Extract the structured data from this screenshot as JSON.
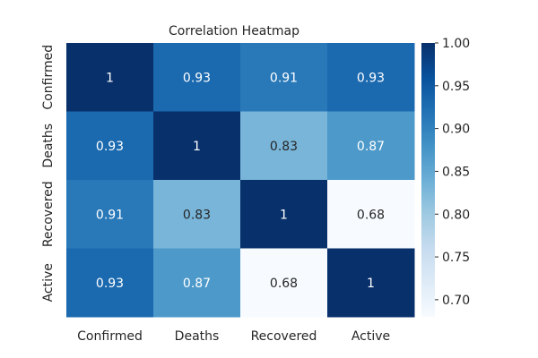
{
  "chart_data": {
    "type": "heatmap",
    "title": "Correlation Heatmap",
    "x_categories": [
      "Confirmed",
      "Deaths",
      "Recovered",
      "Active"
    ],
    "y_categories": [
      "Confirmed",
      "Deaths",
      "Recovered",
      "Active"
    ],
    "values": [
      [
        1,
        0.93,
        0.91,
        0.93
      ],
      [
        0.93,
        1,
        0.83,
        0.87
      ],
      [
        0.91,
        0.83,
        1,
        0.68
      ],
      [
        0.93,
        0.87,
        0.68,
        1
      ]
    ],
    "value_labels": [
      [
        "1",
        "0.93",
        "0.91",
        "0.93"
      ],
      [
        "0.93",
        "1",
        "0.83",
        "0.87"
      ],
      [
        "0.91",
        "0.83",
        "1",
        "0.68"
      ],
      [
        "0.93",
        "0.87",
        "0.68",
        "1"
      ]
    ],
    "colorbar": {
      "min": 0.68,
      "max": 1.0,
      "ticks": [
        "0.70",
        "0.75",
        "0.80",
        "0.85",
        "0.90",
        "0.95",
        "1.00"
      ],
      "colormap": "Blues",
      "colors": [
        "#f7fbff",
        "#deebf7",
        "#c6dbef",
        "#9ecae1",
        "#6baed6",
        "#4292c6",
        "#2171b5",
        "#08519c",
        "#08306b"
      ]
    }
  }
}
